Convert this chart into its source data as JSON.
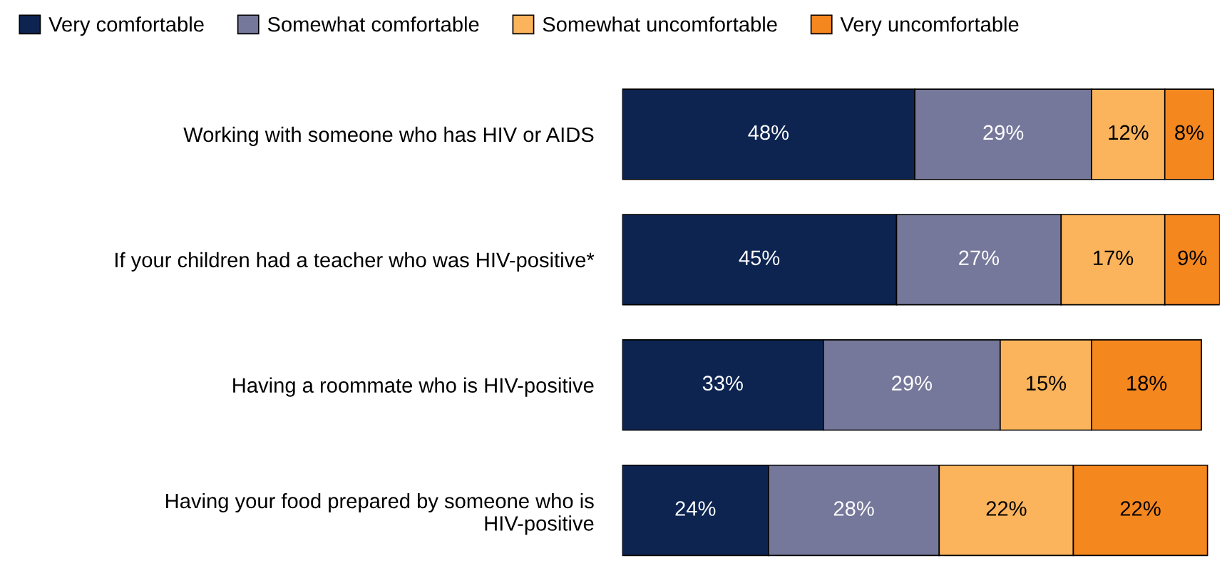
{
  "chart_data": {
    "type": "bar",
    "orientation": "horizontal",
    "stacked": true,
    "legend": "top",
    "grid": false,
    "tick_labels": "y",
    "categories": [
      "Working with someone who has HIV or AIDS",
      "If your children had a teacher who was HIV-positive*",
      "Having a roommate who is HIV-positive",
      "Having your food prepared by someone who is\nHIV-positive"
    ],
    "series": [
      {
        "name": "Very comfortable",
        "color": "#0d2451",
        "values": [
          48,
          45,
          33,
          24
        ],
        "value_labels": [
          "48%",
          "45%",
          "33%",
          "24%"
        ]
      },
      {
        "name": "Somewhat comfortable",
        "color": "#75789a",
        "values": [
          29,
          27,
          29,
          28
        ],
        "value_labels": [
          "29%",
          "27%",
          "29%",
          "28%"
        ]
      },
      {
        "name": "Somewhat uncomfortable",
        "color": "#fbb45c",
        "values": [
          12,
          17,
          15,
          22
        ],
        "value_labels": [
          "12%",
          "17%",
          "15%",
          "22%"
        ]
      },
      {
        "name": "Very uncomfortable",
        "color": "#f5871f",
        "values": [
          8,
          9,
          18,
          22
        ],
        "value_labels": [
          "8%",
          "9%",
          "18%",
          "22%"
        ]
      }
    ]
  }
}
